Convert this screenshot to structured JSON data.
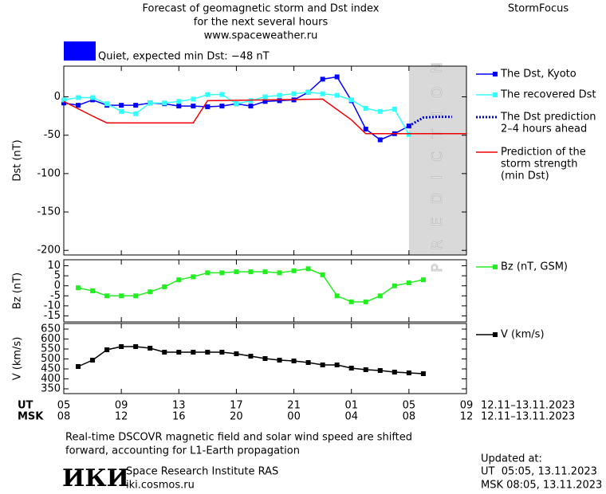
{
  "header": {
    "title": [
      "Forecast of geomagnetic storm and Dst index",
      "for the next several hours",
      "www.spaceweather.ru"
    ],
    "brand": "StormFocus",
    "status": "Quiet, expected min Dst: −48 nT",
    "status_color": "#0000ff"
  },
  "chart_data": [
    {
      "type": "line",
      "y_label": "Dst (nT)",
      "xlim": [
        0,
        28
      ],
      "ylim": [
        -206,
        40
      ],
      "yticks": [
        0,
        -50,
        -100,
        -150,
        -200
      ],
      "prediction_region": {
        "x": [
          24,
          28
        ],
        "label": "PREDICTION",
        "color": "#d9d9d9"
      },
      "series": [
        {
          "name": [
            "The Dst, Kyoto"
          ],
          "color": "#0000ff",
          "marker": "square",
          "dash": false,
          "x": [
            0,
            1,
            2,
            3,
            4,
            5,
            6,
            7,
            8,
            9,
            10,
            11,
            12,
            13,
            14,
            15,
            16,
            17,
            18,
            19,
            20,
            21,
            22,
            23,
            24
          ],
          "values": [
            -8,
            -11,
            -4,
            -11,
            -11,
            -11,
            -8,
            -9,
            -12,
            -12,
            -13,
            -12,
            -9,
            -12,
            -6,
            -5,
            -4,
            6,
            23,
            26,
            -5,
            -42,
            -56,
            -48,
            -38
          ]
        },
        {
          "name": [
            "The recovered Dst"
          ],
          "color": "#33ffff",
          "marker": "square",
          "dash": false,
          "x": [
            0,
            1,
            2,
            3,
            4,
            5,
            6,
            7,
            8,
            9,
            10,
            11,
            12,
            13,
            14,
            15,
            16,
            17,
            18,
            19,
            20,
            21,
            22,
            23,
            24
          ],
          "values": [
            -4,
            -1,
            -1,
            -9,
            -19,
            -22,
            -8,
            -8,
            -6,
            -3,
            3,
            3,
            -9,
            -5,
            0,
            2,
            4,
            6,
            4,
            2,
            -4,
            -15,
            -19,
            -16,
            -49
          ]
        },
        {
          "name": [
            "The Dst prediction",
            "2–4 hours ahead"
          ],
          "color": "#0000cc",
          "marker": "none",
          "dash": true,
          "x": [
            24,
            25,
            26,
            27
          ],
          "values": [
            -38,
            -27,
            -26,
            -26
          ]
        },
        {
          "name": [
            "Prediction of the",
            "storm strength",
            "(min Dst)"
          ],
          "color": "#ee0000",
          "marker": "none",
          "dash": false,
          "x": [
            0,
            2,
            3,
            9,
            10,
            14,
            18,
            20,
            21,
            28
          ],
          "values": [
            -6,
            -25,
            -34,
            -34,
            -5,
            -4,
            -3,
            -30,
            -48,
            -48
          ]
        }
      ]
    },
    {
      "type": "line",
      "y_label": "Bz (nT)",
      "xlim": [
        0,
        28
      ],
      "ylim": [
        -18,
        13
      ],
      "yticks": [
        10,
        5,
        0,
        -5,
        -10,
        -15
      ],
      "series": [
        {
          "name": [
            "Bz (nT, GSM)"
          ],
          "color": "#22ee22",
          "marker": "square",
          "dash": false,
          "x": [
            1,
            2,
            3,
            4,
            5,
            6,
            7,
            8,
            9,
            10,
            11,
            12,
            13,
            14,
            15,
            16,
            17,
            18,
            19,
            20,
            21,
            22,
            23,
            24,
            25
          ],
          "values": [
            -1,
            -2.5,
            -5,
            -5,
            -5,
            -3,
            -0.5,
            3,
            4.5,
            6.5,
            6.5,
            7,
            7,
            7,
            6.5,
            7.5,
            8.5,
            5.5,
            -5,
            -8,
            -8,
            -5,
            0,
            1.5,
            3
          ]
        }
      ]
    },
    {
      "type": "line",
      "y_label": "V (km/s)",
      "xlim": [
        0,
        28
      ],
      "ylim": [
        326,
        678
      ],
      "yticks": [
        650,
        600,
        550,
        500,
        450,
        400,
        350
      ],
      "xticks": [
        {
          "value": 0,
          "label": "05"
        },
        {
          "value": 4,
          "label": "09"
        },
        {
          "value": 8,
          "label": "13"
        },
        {
          "value": 12,
          "label": "17"
        },
        {
          "value": 16,
          "label": "21"
        },
        {
          "value": 20,
          "label": "01"
        },
        {
          "value": 24,
          "label": "05"
        },
        {
          "value": 28,
          "label": "09"
        }
      ],
      "xticks_msk": [
        {
          "value": 0,
          "label": "08"
        },
        {
          "value": 4,
          "label": "12"
        },
        {
          "value": 8,
          "label": "16"
        },
        {
          "value": 12,
          "label": "20"
        },
        {
          "value": 16,
          "label": "00"
        },
        {
          "value": 20,
          "label": "04"
        },
        {
          "value": 24,
          "label": "08"
        },
        {
          "value": 28,
          "label": "12"
        }
      ],
      "x_rows": [
        "UT",
        "MSK"
      ],
      "date_range": [
        "12.11–13.11.2023",
        "12.11–13.11.2023"
      ],
      "series": [
        {
          "name": [
            "V (km/s)"
          ],
          "color": "#000000",
          "marker": "square",
          "dash": false,
          "x": [
            1,
            2,
            3,
            4,
            5,
            6,
            7,
            8,
            9,
            10,
            11,
            12,
            13,
            14,
            15,
            16,
            17,
            18,
            19,
            20,
            21,
            22,
            23,
            24,
            25
          ],
          "values": [
            462,
            494,
            546,
            562,
            562,
            554,
            534,
            534,
            534,
            534,
            534,
            526,
            514,
            502,
            494,
            490,
            482,
            470,
            470,
            454,
            446,
            442,
            434,
            430,
            426
          ]
        }
      ]
    }
  ],
  "footer": {
    "note": [
      "Real-time DSCOVR magnetic field and solar wind speed are shifted",
      "forward, accounting for L1-Earth propagation"
    ],
    "logo": "ИКИ",
    "institute": "Space Research Institute RAS",
    "url": "iki.cosmos.ru",
    "updated": [
      "Updated at:",
      "UT  05:05, 13.11.2023",
      "MSK 08:05, 13.11.2023"
    ]
  }
}
